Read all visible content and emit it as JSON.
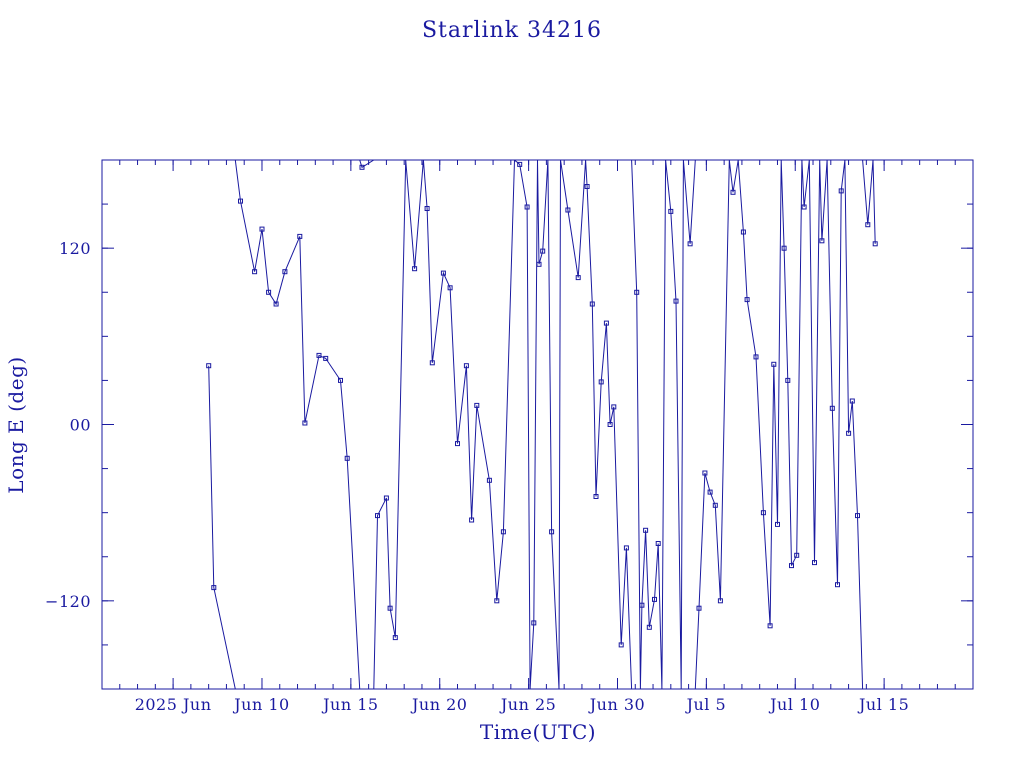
{
  "chart_data": {
    "type": "line",
    "title": "Starlink 34216",
    "xlabel": "Time(UTC)",
    "ylabel": "Long E (deg)",
    "x_ticks": [
      {
        "date": "2025-06-05",
        "label": "2025 Jun"
      },
      {
        "date": "2025-06-10",
        "label": "Jun 10"
      },
      {
        "date": "2025-06-15",
        "label": "Jun 15"
      },
      {
        "date": "2025-06-20",
        "label": "Jun 20"
      },
      {
        "date": "2025-06-25",
        "label": "Jun 25"
      },
      {
        "date": "2025-06-30",
        "label": "Jun 30"
      },
      {
        "date": "2025-07-05",
        "label": "Jul  5"
      },
      {
        "date": "2025-07-10",
        "label": "Jul 10"
      },
      {
        "date": "2025-07-15",
        "label": "Jul 15"
      }
    ],
    "xlim": [
      "2025-06-01",
      "2025-07-20"
    ],
    "ylim": [
      -180,
      180
    ],
    "y_ticks": [
      {
        "value": -120,
        "label": "−120"
      },
      {
        "value": 0,
        "label": "00"
      },
      {
        "value": 120,
        "label": "120"
      }
    ],
    "y_minor_step": 30,
    "x_minor_step_days": 1,
    "grid": false,
    "wrap_longitude": true,
    "series": [
      {
        "points": [
          [
            "2025-06-07T00:00",
            40
          ],
          [
            "2025-06-07T07:00",
            -111
          ],
          [
            "2025-06-08T12:00",
            -180
          ],
          [
            "2025-06-08T12:00",
            180
          ],
          [
            "2025-06-08T19:00",
            152
          ],
          [
            "2025-06-09T14:00",
            104
          ],
          [
            "2025-06-10T00:00",
            133
          ],
          [
            "2025-06-10T09:00",
            90
          ],
          [
            "2025-06-10T19:00",
            82
          ],
          [
            "2025-06-11T07:00",
            104
          ],
          [
            "2025-06-12T03:00",
            128
          ],
          [
            "2025-06-12T10:00",
            1
          ],
          [
            "2025-06-13T05:00",
            47
          ],
          [
            "2025-06-13T14:00",
            45
          ],
          [
            "2025-06-14T10:00",
            30
          ],
          [
            "2025-06-14T19:00",
            -23
          ],
          [
            "2025-06-15T12:00",
            -180
          ],
          [
            "2025-06-15T12:00",
            180
          ],
          [
            "2025-06-15T15:00",
            175
          ],
          [
            "2025-06-16T07:00",
            180
          ],
          [
            "2025-06-16T07:00",
            -180
          ],
          [
            "2025-06-16T12:00",
            -62
          ],
          [
            "2025-06-17T00:00",
            -50
          ],
          [
            "2025-06-17T05:00",
            -125
          ],
          [
            "2025-06-17T12:00",
            -145
          ],
          [
            "2025-06-18T02:00",
            180
          ],
          [
            "2025-06-18T02:00",
            180
          ],
          [
            "2025-06-18T14:00",
            106
          ],
          [
            "2025-06-19T02:00",
            180
          ],
          [
            "2025-06-19T07:00",
            147
          ],
          [
            "2025-06-19T14:00",
            42
          ],
          [
            "2025-06-20T05:00",
            103
          ],
          [
            "2025-06-20T14:00",
            93
          ],
          [
            "2025-06-21T00:00",
            -13
          ],
          [
            "2025-06-21T12:00",
            40
          ],
          [
            "2025-06-21T19:00",
            -65
          ],
          [
            "2025-06-22T02:00",
            13
          ],
          [
            "2025-06-22T19:00",
            -38
          ],
          [
            "2025-06-23T05:00",
            -120
          ],
          [
            "2025-06-23T14:00",
            -73
          ],
          [
            "2025-06-24T05:00",
            180
          ],
          [
            "2025-06-24T12:00",
            177
          ],
          [
            "2025-06-24T22:00",
            148
          ],
          [
            "2025-06-25T02:00",
            -180
          ],
          [
            "2025-06-25T07:00",
            -135
          ],
          [
            "2025-06-25T12:00",
            180
          ],
          [
            "2025-06-25T14:00",
            109
          ],
          [
            "2025-06-25T19:00",
            118
          ],
          [
            "2025-06-26T02:00",
            180
          ],
          [
            "2025-06-26T07:00",
            -73
          ],
          [
            "2025-06-26T17:00",
            -180
          ],
          [
            "2025-06-26T19:00",
            180
          ],
          [
            "2025-06-27T05:00",
            146
          ],
          [
            "2025-06-27T19:00",
            100
          ],
          [
            "2025-06-28T05:00",
            180
          ],
          [
            "2025-06-28T07:00",
            162
          ],
          [
            "2025-06-28T14:00",
            82
          ],
          [
            "2025-06-28T19:00",
            -49
          ],
          [
            "2025-06-29T02:00",
            29
          ],
          [
            "2025-06-29T09:00",
            69
          ],
          [
            "2025-06-29T14:00",
            0
          ],
          [
            "2025-06-29T19:00",
            12
          ],
          [
            "2025-06-30T05:00",
            -150
          ],
          [
            "2025-06-30T12:00",
            -84
          ],
          [
            "2025-06-30T19:00",
            -180
          ],
          [
            "2025-06-30T19:00",
            180
          ],
          [
            "2025-07-01T02:00",
            90
          ],
          [
            "2025-07-01T07:00",
            -180
          ],
          [
            "2025-07-01T09:00",
            -123
          ],
          [
            "2025-07-01T14:00",
            -72
          ],
          [
            "2025-07-01T19:00",
            -138
          ],
          [
            "2025-07-02T02:00",
            -119
          ],
          [
            "2025-07-02T07:00",
            -81
          ],
          [
            "2025-07-02T12:00",
            -180
          ],
          [
            "2025-07-02T17:00",
            180
          ],
          [
            "2025-07-03T00:00",
            145
          ],
          [
            "2025-07-03T07:00",
            84
          ],
          [
            "2025-07-03T14:00",
            -180
          ],
          [
            "2025-07-03T17:00",
            180
          ],
          [
            "2025-07-04T02:00",
            123
          ],
          [
            "2025-07-04T09:00",
            180
          ],
          [
            "2025-07-04T09:00",
            -180
          ],
          [
            "2025-07-04T14:00",
            -125
          ],
          [
            "2025-07-04T22:00",
            -33
          ],
          [
            "2025-07-05T05:00",
            -46
          ],
          [
            "2025-07-05T12:00",
            -55
          ],
          [
            "2025-07-05T19:00",
            -120
          ],
          [
            "2025-07-06T07:00",
            180
          ],
          [
            "2025-07-06T12:00",
            158
          ],
          [
            "2025-07-06T19:00",
            180
          ],
          [
            "2025-07-07T02:00",
            131
          ],
          [
            "2025-07-07T07:00",
            85
          ],
          [
            "2025-07-07T19:00",
            46
          ],
          [
            "2025-07-08T05:00",
            -60
          ],
          [
            "2025-07-08T14:00",
            -137
          ],
          [
            "2025-07-08T19:00",
            41
          ],
          [
            "2025-07-09T00:00",
            -68
          ],
          [
            "2025-07-09T05:00",
            180
          ],
          [
            "2025-07-09T09:00",
            120
          ],
          [
            "2025-07-09T14:00",
            30
          ],
          [
            "2025-07-09T19:00",
            -96
          ],
          [
            "2025-07-10T02:00",
            -89
          ],
          [
            "2025-07-10T09:00",
            180
          ],
          [
            "2025-07-10T12:00",
            148
          ],
          [
            "2025-07-10T19:00",
            180
          ],
          [
            "2025-07-11T02:00",
            -94
          ],
          [
            "2025-07-11T09:00",
            180
          ],
          [
            "2025-07-11T12:00",
            125
          ],
          [
            "2025-07-11T19:00",
            180
          ],
          [
            "2025-07-12T02:00",
            11
          ],
          [
            "2025-07-12T09:00",
            -109
          ],
          [
            "2025-07-12T14:00",
            159
          ],
          [
            "2025-07-12T19:00",
            180
          ],
          [
            "2025-07-13T00:00",
            -6
          ],
          [
            "2025-07-13T05:00",
            16
          ],
          [
            "2025-07-13T12:00",
            -62
          ],
          [
            "2025-07-13T19:00",
            -180
          ],
          [
            "2025-07-13T19:00",
            180
          ],
          [
            "2025-07-14T02:00",
            136
          ],
          [
            "2025-07-14T09:00",
            180
          ],
          [
            "2025-07-14T12:00",
            123
          ]
        ]
      }
    ]
  }
}
